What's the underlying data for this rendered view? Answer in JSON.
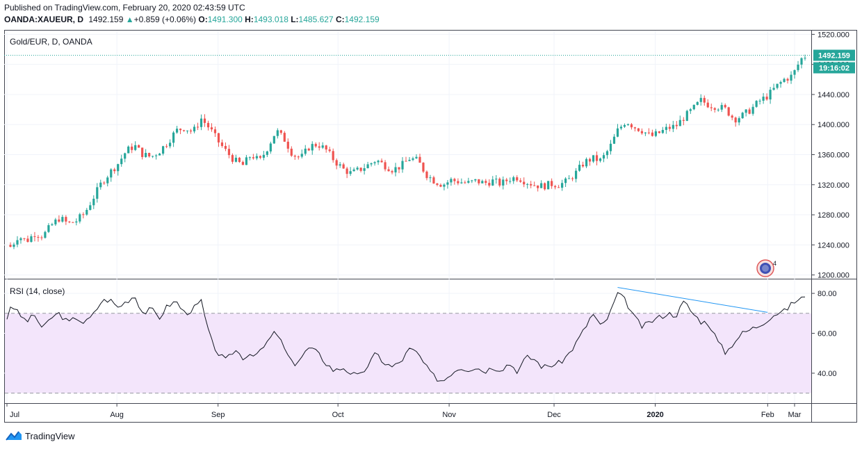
{
  "header": {
    "published": "Published on TradingView.com, February 20, 2020 02:43:59 UTC",
    "symbol": "OANDA:XAUEUR, D",
    "last": "1492.159",
    "change": "+0.859 (+0.06%)",
    "o_label": "O:",
    "o_value": "1491.300",
    "h_label": "H:",
    "h_value": "1493.018",
    "l_label": "L:",
    "l_value": "1485.627",
    "c_label": "C:",
    "c_value": "1492.159"
  },
  "main_pane": {
    "title": "Gold/EUR, D, OANDA",
    "price_label": "1492.159",
    "countdown": "19:16:02",
    "badge_count": "4"
  },
  "rsi_pane": {
    "title": "RSI (14, close)"
  },
  "brand": "TradingView",
  "colors": {
    "up": "#26a69a",
    "down": "#ef5350",
    "rsi_line": "#131722",
    "rsi_band": "#f3e5fb",
    "trendline": "#2196f3",
    "label_bg": "#26a69a"
  },
  "chart_data": [
    {
      "type": "candlestick",
      "title": "Gold/EUR, D, OANDA",
      "x_ticks": [
        "Jul",
        "Aug",
        "Sep",
        "Oct",
        "Nov",
        "Dec",
        "2020",
        "Feb",
        "Mar"
      ],
      "y_ticks": [
        "1200.000",
        "1240.000",
        "1280.000",
        "1320.000",
        "1360.000",
        "1400.000",
        "1440.000",
        "1480.000",
        "1520.000"
      ],
      "ylim": [
        1195,
        1525
      ],
      "last_price": 1492.159,
      "close_path": [
        [
          0,
          1240
        ],
        [
          3,
          1237
        ],
        [
          8,
          1252
        ],
        [
          14,
          1245
        ],
        [
          20,
          1255
        ],
        [
          26,
          1252
        ],
        [
          32,
          1266
        ],
        [
          38,
          1276
        ],
        [
          44,
          1268
        ],
        [
          50,
          1272
        ],
        [
          56,
          1282
        ],
        [
          62,
          1302
        ],
        [
          68,
          1322
        ],
        [
          74,
          1336
        ],
        [
          80,
          1348
        ],
        [
          86,
          1365
        ],
        [
          92,
          1372
        ],
        [
          98,
          1360
        ],
        [
          104,
          1357
        ],
        [
          110,
          1365
        ],
        [
          116,
          1377
        ],
        [
          122,
          1392
        ],
        [
          128,
          1396
        ],
        [
          134,
          1390
        ],
        [
          140,
          1408
        ],
        [
          146,
          1395
        ],
        [
          152,
          1378
        ],
        [
          158,
          1364
        ],
        [
          164,
          1352
        ],
        [
          170,
          1346
        ],
        [
          176,
          1360
        ],
        [
          182,
          1351
        ],
        [
          188,
          1370
        ],
        [
          194,
          1392
        ],
        [
          200,
          1380
        ],
        [
          206,
          1360
        ],
        [
          212,
          1356
        ],
        [
          218,
          1371
        ],
        [
          224,
          1374
        ],
        [
          230,
          1366
        ],
        [
          236,
          1352
        ],
        [
          242,
          1341
        ],
        [
          248,
          1335
        ],
        [
          254,
          1340
        ],
        [
          260,
          1346
        ],
        [
          266,
          1353
        ],
        [
          272,
          1346
        ],
        [
          278,
          1340
        ],
        [
          284,
          1345
        ],
        [
          290,
          1355
        ],
        [
          296,
          1352
        ],
        [
          302,
          1334
        ],
        [
          308,
          1325
        ],
        [
          314,
          1320
        ],
        [
          320,
          1326
        ],
        [
          326,
          1324
        ],
        [
          332,
          1322
        ],
        [
          338,
          1325
        ],
        [
          344,
          1322
        ],
        [
          350,
          1325
        ],
        [
          356,
          1321
        ],
        [
          362,
          1328
        ],
        [
          368,
          1330
        ],
        [
          374,
          1324
        ],
        [
          380,
          1320
        ],
        [
          386,
          1318
        ],
        [
          392,
          1321
        ],
        [
          398,
          1320
        ],
        [
          404,
          1325
        ],
        [
          410,
          1336
        ],
        [
          416,
          1350
        ],
        [
          422,
          1355
        ],
        [
          428,
          1352
        ],
        [
          434,
          1368
        ],
        [
          440,
          1392
        ],
        [
          446,
          1405
        ],
        [
          452,
          1397
        ],
        [
          458,
          1392
        ],
        [
          464,
          1384
        ],
        [
          470,
          1389
        ],
        [
          476,
          1395
        ],
        [
          482,
          1398
        ],
        [
          488,
          1410
        ],
        [
          494,
          1420
        ],
        [
          500,
          1432
        ],
        [
          506,
          1426
        ],
        [
          512,
          1424
        ],
        [
          518,
          1420
        ],
        [
          524,
          1407
        ],
        [
          530,
          1412
        ],
        [
          536,
          1420
        ],
        [
          542,
          1431
        ],
        [
          548,
          1438
        ],
        [
          554,
          1450
        ],
        [
          560,
          1460
        ],
        [
          566,
          1465
        ],
        [
          572,
          1487
        ],
        [
          576,
          1492.159
        ]
      ]
    },
    {
      "type": "line",
      "title": "RSI (14, close)",
      "y_ticks": [
        "40.00",
        "60.00",
        "80.00"
      ],
      "ylim": [
        25,
        87
      ],
      "band": [
        30,
        70
      ],
      "series": [
        {
          "values": [
            [
              0,
              67
            ],
            [
              3,
              75
            ],
            [
              8,
              70
            ],
            [
              14,
              66
            ],
            [
              20,
              69
            ],
            [
              26,
              62
            ],
            [
              32,
              68
            ],
            [
              38,
              70
            ],
            [
              44,
              65
            ],
            [
              50,
              68
            ],
            [
              56,
              65
            ],
            [
              62,
              69
            ],
            [
              68,
              76
            ],
            [
              74,
              77
            ],
            [
              80,
              73
            ],
            [
              86,
              76
            ],
            [
              92,
              79
            ],
            [
              98,
              70
            ],
            [
              104,
              72
            ],
            [
              110,
              68
            ],
            [
              116,
              74
            ],
            [
              122,
              76
            ],
            [
              128,
              70
            ],
            [
              134,
              72
            ],
            [
              140,
              76
            ],
            [
              146,
              58
            ],
            [
              152,
              50
            ],
            [
              158,
              46
            ],
            [
              164,
              52
            ],
            [
              170,
              48
            ],
            [
              176,
              50
            ],
            [
              182,
              50
            ],
            [
              188,
              56
            ],
            [
              194,
              61
            ],
            [
              200,
              52
            ],
            [
              206,
              44
            ],
            [
              212,
              48
            ],
            [
              218,
              53
            ],
            [
              224,
              50
            ],
            [
              230,
              45
            ],
            [
              236,
              41
            ],
            [
              242,
              43
            ],
            [
              248,
              40
            ],
            [
              254,
              38
            ],
            [
              260,
              44
            ],
            [
              266,
              50
            ],
            [
              272,
              45
            ],
            [
              278,
              43
            ],
            [
              284,
              46
            ],
            [
              290,
              52
            ],
            [
              296,
              50
            ],
            [
              302,
              43
            ],
            [
              308,
              38
            ],
            [
              314,
              36
            ],
            [
              320,
              40
            ],
            [
              326,
              43
            ],
            [
              332,
              42
            ],
            [
              338,
              43
            ],
            [
              344,
              41
            ],
            [
              350,
              43
            ],
            [
              356,
              42
            ],
            [
              362,
              45
            ],
            [
              368,
              41
            ],
            [
              374,
              48
            ],
            [
              380,
              47
            ],
            [
              386,
              43
            ],
            [
              392,
              44
            ],
            [
              398,
              45
            ],
            [
              404,
              49
            ],
            [
              410,
              55
            ],
            [
              416,
              62
            ],
            [
              422,
              70
            ],
            [
              428,
              63
            ],
            [
              434,
              69
            ],
            [
              440,
              80
            ],
            [
              446,
              76
            ],
            [
              452,
              68
            ],
            [
              458,
              63
            ],
            [
              464,
              66
            ],
            [
              470,
              68
            ],
            [
              476,
              70
            ],
            [
              482,
              69
            ],
            [
              488,
              76
            ],
            [
              494,
              70
            ],
            [
              500,
              66
            ],
            [
              506,
              65
            ],
            [
              512,
              56
            ],
            [
              518,
              50
            ],
            [
              524,
              56
            ],
            [
              530,
              60
            ],
            [
              536,
              62
            ],
            [
              542,
              64
            ],
            [
              548,
              67
            ],
            [
              554,
              70
            ],
            [
              560,
              71
            ],
            [
              566,
              75
            ],
            [
              572,
              78
            ],
            [
              576,
              77
            ]
          ]
        }
      ],
      "trendline": [
        [
          440,
          83
        ],
        [
          548,
          70.5
        ]
      ]
    }
  ]
}
